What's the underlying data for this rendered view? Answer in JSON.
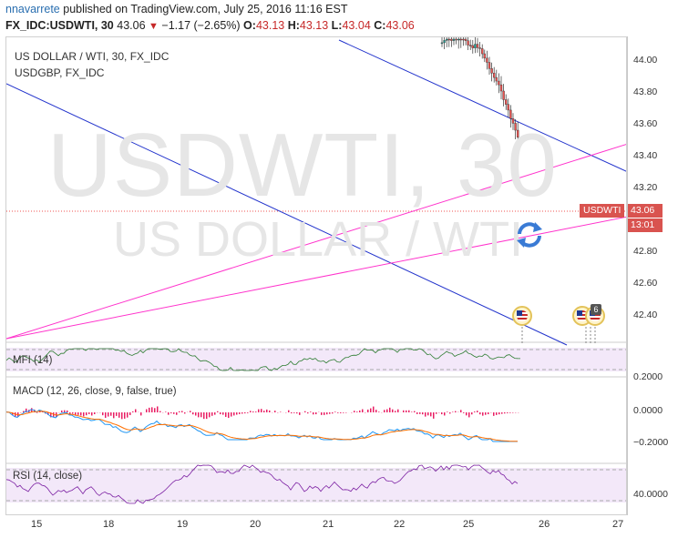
{
  "header": {
    "author": "nnavarrete",
    "published_text": " published on TradingView.com, July 25, 2016 11:16 EST",
    "symbol_line": "FX_IDC:USDWTI, 30",
    "last": "43.06",
    "change": "−1.17 (−2.65%)",
    "open_label": "O:",
    "open": "43.13",
    "high_label": "H:",
    "high": "43.13",
    "low_label": "L:",
    "low": "43.04",
    "close_label": "C:",
    "close": "43.06"
  },
  "chart": {
    "symbol_title": "US DOLLAR / WTI, 30, FX_IDC",
    "compare_symbol": "USDGBP, FX_IDC",
    "watermark_symbol": "USDWTI, 30",
    "watermark_name": "US DOLLAR / WTI",
    "price_tag_label": "USDWTI",
    "price_axis_value": "43.06",
    "countdown": "13:01",
    "price_ticks": [
      "44.00",
      "43.80",
      "43.60",
      "43.40",
      "43.20",
      "42.80",
      "42.60",
      "42.40"
    ],
    "mfi_label": "MFI (14)",
    "mfi_ticks": [
      "0.2000"
    ],
    "macd_label": "MACD (12, 26, close, 9, false, true)",
    "macd_ticks": [
      "0.0000",
      "−0.2000"
    ],
    "rsi_label": "RSI (14, close)",
    "rsi_ticks": [
      "40.0000"
    ],
    "x_ticks": [
      "15",
      "18",
      "19",
      "20",
      "21",
      "22",
      "25",
      "26",
      "27"
    ],
    "event_badge_count": "6"
  },
  "colors": {
    "up_candle": "#26a69a",
    "down_candle": "#ef5350",
    "trendline_blue": "#2233cc",
    "trendline_magenta": "#ff33cc",
    "indicator_line": "#2e7d32",
    "macd_line": "#2196f3",
    "signal_line": "#ff6f00",
    "histogram": "#e91e63",
    "rsi_line": "#7b1fa2",
    "price_tag": "#d9534f"
  },
  "icons": [
    "refresh-icon",
    "us-flag-event-icon"
  ]
}
